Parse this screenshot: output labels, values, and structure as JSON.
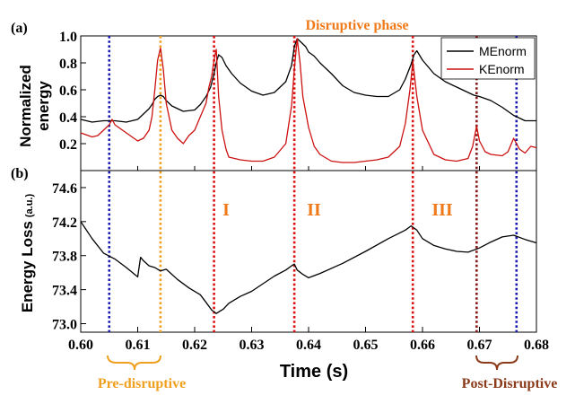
{
  "chart_data": [
    {
      "panel_label": "(a)",
      "type": "line",
      "title": "Disruptive phase",
      "ylabel": "Normalized energy",
      "xlim": [
        0.6,
        0.68
      ],
      "ylim": [
        0.0,
        1.0
      ],
      "yticks": [
        "0.2",
        "0.4",
        "0.6",
        "0.8",
        "1.0"
      ],
      "legend_position": "top-right",
      "grid": false,
      "series": [
        {
          "name": "MEnorm",
          "color": "#000000",
          "x": [
            0.6,
            0.602,
            0.604,
            0.606,
            0.608,
            0.61,
            0.611,
            0.612,
            0.6125,
            0.613,
            0.6135,
            0.614,
            0.6145,
            0.615,
            0.6155,
            0.616,
            0.618,
            0.62,
            0.621,
            0.622,
            0.6228,
            0.6234,
            0.6238,
            0.6242,
            0.6248,
            0.6255,
            0.6265,
            0.628,
            0.63,
            0.632,
            0.634,
            0.636,
            0.637,
            0.6375,
            0.638,
            0.6385,
            0.6395,
            0.64,
            0.641,
            0.642,
            0.644,
            0.646,
            0.648,
            0.65,
            0.652,
            0.654,
            0.656,
            0.657,
            0.658,
            0.6585,
            0.659,
            0.66,
            0.662,
            0.664,
            0.666,
            0.668,
            0.669,
            0.67,
            0.672,
            0.674,
            0.676,
            0.678,
            0.68
          ],
          "y": [
            0.38,
            0.36,
            0.37,
            0.37,
            0.36,
            0.38,
            0.42,
            0.46,
            0.49,
            0.53,
            0.55,
            0.56,
            0.55,
            0.52,
            0.5,
            0.48,
            0.44,
            0.45,
            0.49,
            0.55,
            0.62,
            0.72,
            0.8,
            0.86,
            0.84,
            0.78,
            0.72,
            0.65,
            0.59,
            0.56,
            0.58,
            0.66,
            0.78,
            0.92,
            0.98,
            0.96,
            0.92,
            0.88,
            0.85,
            0.8,
            0.72,
            0.63,
            0.58,
            0.56,
            0.55,
            0.55,
            0.6,
            0.68,
            0.79,
            0.86,
            0.89,
            0.82,
            0.72,
            0.66,
            0.62,
            0.58,
            0.56,
            0.55,
            0.52,
            0.47,
            0.41,
            0.37,
            0.37
          ]
        },
        {
          "name": "KEnorm",
          "color": "#cc1111",
          "x": [
            0.6,
            0.602,
            0.603,
            0.604,
            0.605,
            0.6055,
            0.606,
            0.608,
            0.61,
            0.611,
            0.612,
            0.6125,
            0.613,
            0.6135,
            0.614,
            0.6145,
            0.615,
            0.616,
            0.617,
            0.618,
            0.619,
            0.62,
            0.621,
            0.622,
            0.6225,
            0.623,
            0.6234,
            0.6238,
            0.6242,
            0.6248,
            0.6255,
            0.626,
            0.628,
            0.63,
            0.632,
            0.634,
            0.636,
            0.637,
            0.6375,
            0.638,
            0.6385,
            0.639,
            0.64,
            0.641,
            0.642,
            0.644,
            0.646,
            0.648,
            0.65,
            0.652,
            0.654,
            0.656,
            0.657,
            0.6578,
            0.6583,
            0.659,
            0.66,
            0.662,
            0.664,
            0.666,
            0.668,
            0.6688,
            0.6695,
            0.67,
            0.671,
            0.672,
            0.674,
            0.675,
            0.676,
            0.677,
            0.678,
            0.679,
            0.68
          ],
          "y": [
            0.28,
            0.25,
            0.26,
            0.3,
            0.34,
            0.38,
            0.34,
            0.28,
            0.22,
            0.24,
            0.3,
            0.4,
            0.6,
            0.82,
            0.91,
            0.75,
            0.5,
            0.3,
            0.24,
            0.2,
            0.26,
            0.3,
            0.4,
            0.5,
            0.62,
            0.7,
            0.82,
            0.9,
            0.55,
            0.3,
            0.16,
            0.1,
            0.08,
            0.07,
            0.07,
            0.1,
            0.2,
            0.48,
            0.75,
            0.98,
            0.8,
            0.55,
            0.32,
            0.18,
            0.12,
            0.07,
            0.06,
            0.06,
            0.07,
            0.08,
            0.1,
            0.18,
            0.35,
            0.6,
            0.81,
            0.55,
            0.3,
            0.12,
            0.08,
            0.07,
            0.09,
            0.18,
            0.33,
            0.22,
            0.14,
            0.12,
            0.11,
            0.14,
            0.24,
            0.16,
            0.13,
            0.18,
            0.17
          ]
        }
      ]
    },
    {
      "panel_label": "(b)",
      "type": "line",
      "xlabel": "Time (s)",
      "ylabel": "Energy Loss (a.u.)",
      "xlim": [
        0.6,
        0.68
      ],
      "ylim": [
        72.9,
        74.8
      ],
      "yticks": [
        "73.0",
        "73.4",
        "73.8",
        "74.2",
        "74.6"
      ],
      "xticks": [
        "0.60",
        "0.61",
        "0.62",
        "0.63",
        "0.64",
        "0.65",
        "0.66",
        "0.67",
        "0.68"
      ],
      "grid": false,
      "series": [
        {
          "color": "#000000",
          "x": [
            0.6,
            0.602,
            0.604,
            0.606,
            0.608,
            0.61,
            0.6105,
            0.611,
            0.612,
            0.613,
            0.614,
            0.615,
            0.617,
            0.619,
            0.621,
            0.622,
            0.623,
            0.6238,
            0.6245,
            0.625,
            0.626,
            0.628,
            0.63,
            0.632,
            0.634,
            0.636,
            0.637,
            0.6375,
            0.638,
            0.639,
            0.64,
            0.642,
            0.646,
            0.65,
            0.654,
            0.657,
            0.658,
            0.659,
            0.66,
            0.662,
            0.664,
            0.666,
            0.668,
            0.67,
            0.672,
            0.674,
            0.676,
            0.678,
            0.68
          ],
          "y": [
            74.2,
            74.0,
            73.83,
            73.76,
            73.66,
            73.55,
            73.78,
            73.74,
            73.68,
            73.66,
            73.62,
            73.64,
            73.52,
            73.42,
            73.34,
            73.25,
            73.16,
            73.12,
            73.15,
            73.17,
            73.24,
            73.32,
            73.38,
            73.47,
            73.56,
            73.63,
            73.68,
            73.7,
            73.63,
            73.58,
            73.54,
            73.59,
            73.71,
            73.85,
            74.0,
            74.1,
            74.15,
            74.1,
            74.0,
            73.92,
            73.88,
            73.85,
            73.84,
            73.89,
            73.96,
            74.02,
            74.04,
            73.99,
            73.95
          ]
        }
      ]
    }
  ],
  "phase_lines": [
    {
      "x": 0.605,
      "color": "#1c1cb0"
    },
    {
      "x": 0.614,
      "color": "#f0a020"
    },
    {
      "x": 0.6234,
      "color": "#dd1111"
    },
    {
      "x": 0.6375,
      "color": "#dd1111"
    },
    {
      "x": 0.6583,
      "color": "#dd1111"
    },
    {
      "x": 0.6695,
      "color": "#8b1a1a"
    },
    {
      "x": 0.6765,
      "color": "#1c1cb0"
    }
  ],
  "annotations": {
    "phase_I": "I",
    "phase_II": "II",
    "phase_III": "III",
    "pre_disruptive": "Pre-disruptive",
    "post_disruptive": "Post-Disruptive"
  },
  "colors": {
    "title": "#f07a1a",
    "phase_label": "#f07a1a",
    "pre_disruptive": "#f0a020",
    "post_disruptive": "#8b3a1a"
  }
}
